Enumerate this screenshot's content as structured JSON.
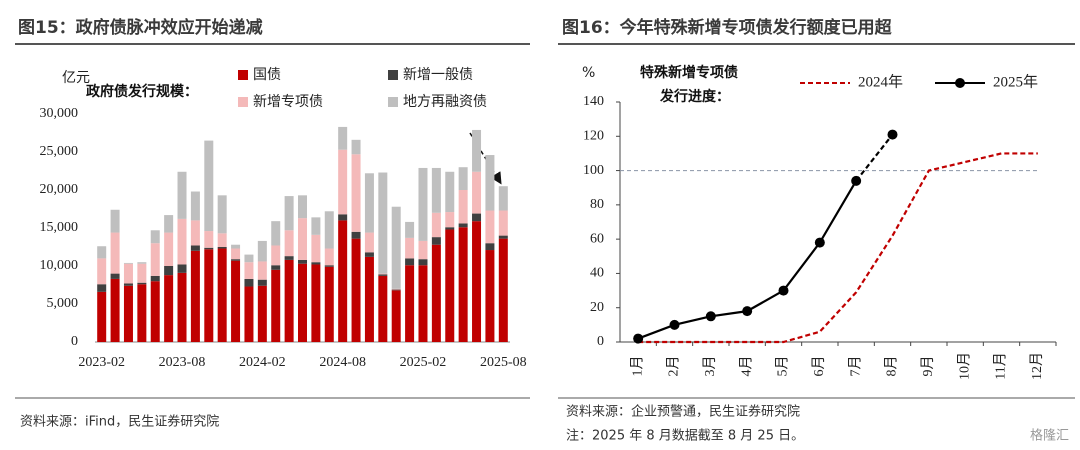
{
  "chart_data": [
    {
      "type": "stacked_bar",
      "title": "图15：政府债脉冲效应开始递减",
      "y_unit": "亿元",
      "annotation": "政府债发行规模：",
      "categories": [
        "2023-02",
        null,
        null,
        null,
        null,
        null,
        "2023-08",
        null,
        null,
        null,
        null,
        null,
        "2024-02",
        null,
        null,
        null,
        null,
        null,
        "2024-08",
        null,
        null,
        null,
        null,
        null,
        "2025-02",
        null,
        null,
        null,
        null,
        null,
        "2025-08"
      ],
      "series": [
        {
          "name": "国债",
          "color": "#c00000",
          "values": [
            6600,
            8300,
            7400,
            7600,
            8000,
            8800,
            9100,
            12000,
            12200,
            12300,
            10700,
            7300,
            7400,
            9500,
            10800,
            10300,
            10200,
            9900,
            16000,
            13600,
            11200,
            8700,
            6800,
            10100,
            10100,
            12800,
            14800,
            15100,
            15900,
            12100,
            13600
          ]
        },
        {
          "name": "新增一般债",
          "color": "#404040",
          "values": [
            1000,
            700,
            300,
            200,
            700,
            1200,
            1100,
            700,
            200,
            200,
            200,
            1000,
            800,
            600,
            500,
            500,
            300,
            200,
            800,
            900,
            600,
            200,
            100,
            900,
            800,
            1000,
            300,
            500,
            1000,
            900,
            400
          ]
        },
        {
          "name": "新增专项债",
          "color": "#f4b9b9",
          "values": [
            3400,
            5400,
            2600,
            2500,
            4300,
            4400,
            6000,
            3300,
            2200,
            1800,
            1400,
            2200,
            2400,
            2600,
            3400,
            5500,
            3600,
            2200,
            8500,
            10200,
            2600,
            100,
            100,
            2700,
            2400,
            3200,
            2000,
            4400,
            5500,
            4300,
            3300
          ]
        },
        {
          "name": "地方再融资债",
          "color": "#bfbfbf",
          "values": [
            1600,
            3000,
            100,
            200,
            1700,
            2300,
            6200,
            3800,
            11900,
            5000,
            500,
            1000,
            2700,
            3200,
            4500,
            3000,
            2300,
            4900,
            3000,
            1900,
            7800,
            13300,
            10800,
            2100,
            9600,
            5900,
            5300,
            3000,
            5500,
            7300,
            3200
          ]
        }
      ],
      "ylim": [
        0,
        30000
      ],
      "yticks": [
        0,
        {
          "value": 5000,
          "label": "5,000"
        },
        {
          "value": 10000,
          "label": "10,000"
        },
        {
          "value": 15000,
          "label": "15,000"
        },
        {
          "value": 20000,
          "label": "20,000"
        },
        {
          "value": 25000,
          "label": "25,000"
        },
        {
          "value": 30000,
          "label": "30,000"
        }
      ],
      "source": "资料来源：iFind，民生证券研究院"
    },
    {
      "type": "line",
      "title": "图16：今年特殊新增专项债发行额度已用超",
      "y_unit": "%",
      "annotation": [
        "特殊新增专项债",
        "发行进度："
      ],
      "categories": [
        "1月",
        "2月",
        "3月",
        "4月",
        "5月",
        "6月",
        "7月",
        "8月",
        "9月",
        "10月",
        "11月",
        "12月"
      ],
      "series": [
        {
          "name": "2024年",
          "color": "#c00000",
          "dashed": true,
          "values": [
            0,
            0,
            0,
            0,
            0,
            6,
            29,
            62,
            100,
            105,
            110,
            110
          ]
        },
        {
          "name": "2025年",
          "color": "#000000",
          "markers": true,
          "dashed_last_segment": true,
          "values": [
            2,
            10,
            15,
            18,
            30,
            58,
            94,
            121,
            null,
            null,
            null,
            null
          ]
        }
      ],
      "reference_line": 100,
      "ylim": [
        0,
        140
      ],
      "yticks": [
        0,
        20,
        40,
        60,
        80,
        100,
        120,
        140
      ],
      "source": "资料来源：企业预警通，民生证券研究院",
      "note": "注：2025 年 8 月数据截至 8 月 25 日。"
    }
  ],
  "watermark": "格隆汇"
}
